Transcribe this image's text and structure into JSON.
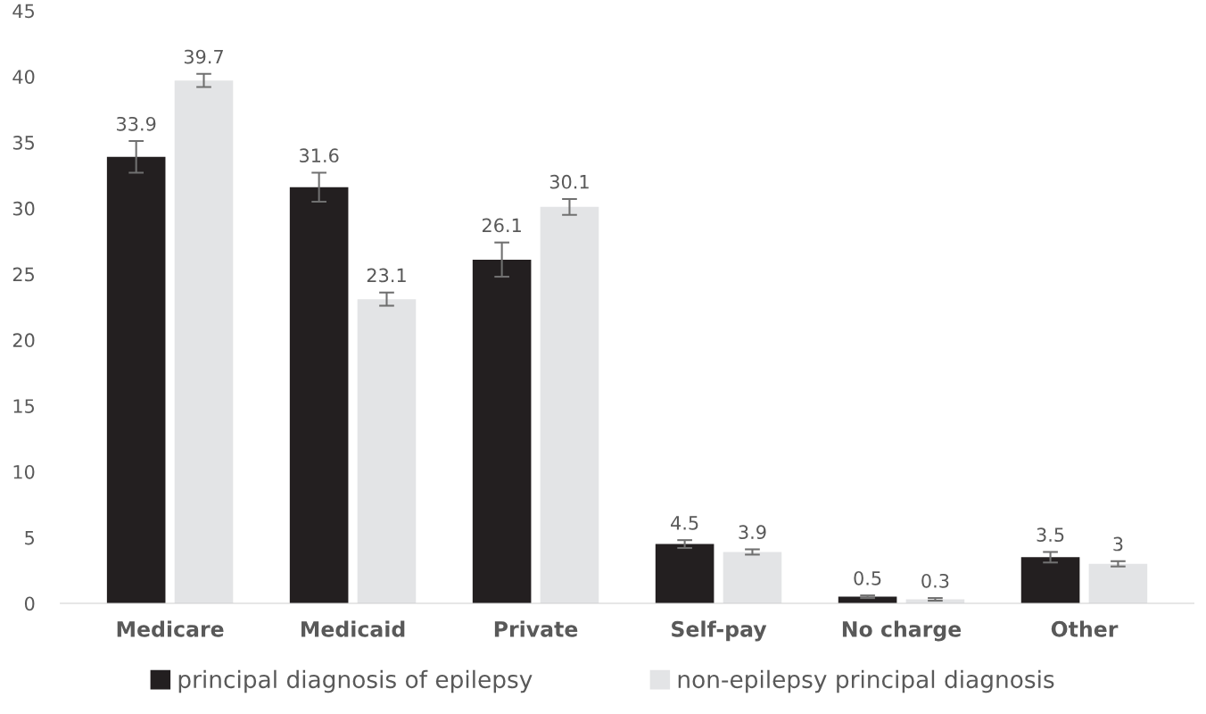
{
  "chart_data": {
    "type": "bar",
    "categories": [
      "Medicare",
      "Medicaid",
      "Private",
      "Self-pay",
      "No charge",
      "Other"
    ],
    "series": [
      {
        "name": "principal diagnosis of epilepsy",
        "color": "#231f20",
        "values": [
          33.9,
          31.6,
          26.1,
          4.5,
          0.5,
          3.5
        ],
        "errors": [
          1.2,
          1.1,
          1.3,
          0.3,
          0.1,
          0.4
        ]
      },
      {
        "name": "non-epilepsy principal diagnosis",
        "color": "#e3e4e6",
        "values": [
          39.7,
          23.1,
          30.1,
          3.9,
          0.3,
          3
        ],
        "errors": [
          0.5,
          0.5,
          0.6,
          0.2,
          0.1,
          0.2
        ]
      }
    ],
    "ylim": [
      0,
      45
    ],
    "yticks": [
      0,
      5,
      10,
      15,
      20,
      25,
      30,
      35,
      40,
      45
    ],
    "data_labels": true,
    "grid": false,
    "legend": "bottom"
  }
}
